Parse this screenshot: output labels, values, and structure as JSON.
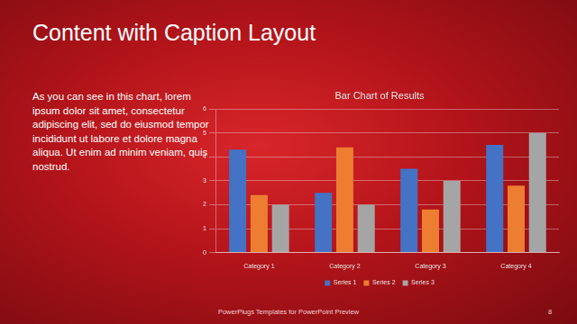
{
  "slide": {
    "title": "Content with Caption Layout",
    "caption": "As you can see in this chart, lorem ipsum dolor sit amet, consectetur adipiscing elit, sed do eiusmod tempor incididunt ut labore et dolore magna aliqua. Ut enim ad minim veniam, quis nostrud.",
    "footer": "PowerPlugs Templates for PowerPoint Preview",
    "page": "8"
  },
  "chart_data": {
    "type": "bar",
    "title": "Bar Chart of Results",
    "categories": [
      "Category 1",
      "Category 2",
      "Category 3",
      "Category 4"
    ],
    "series": [
      {
        "name": "Series 1",
        "color": "#4472c4",
        "values": [
          4.3,
          2.5,
          3.5,
          4.5
        ]
      },
      {
        "name": "Series 2",
        "color": "#ed7d31",
        "values": [
          2.4,
          4.4,
          1.8,
          2.8
        ]
      },
      {
        "name": "Series 3",
        "color": "#a5a5a5",
        "values": [
          2,
          2,
          3,
          5
        ]
      }
    ],
    "ylim": [
      0,
      6
    ],
    "yticks": [
      0,
      1,
      2,
      3,
      4,
      5,
      6
    ],
    "grid": true,
    "legend": "bottom"
  }
}
